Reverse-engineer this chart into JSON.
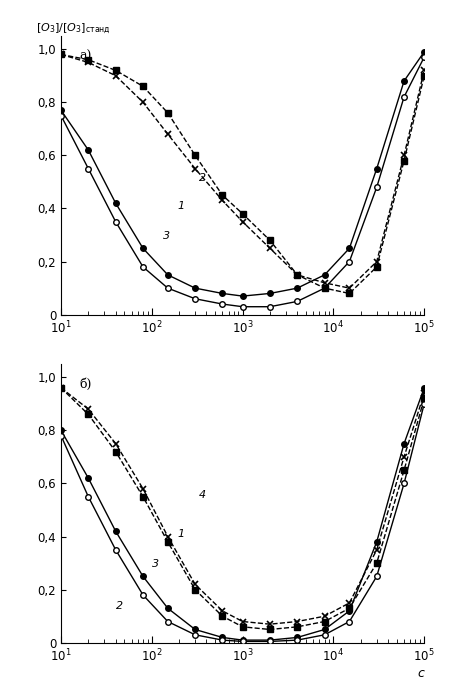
{
  "title_top": "[O₃]/[O₃]станд",
  "label_a": "а)",
  "label_b": "б)",
  "x_label": "c",
  "ylim": [
    0,
    1.05
  ],
  "xlim_log": [
    10.0,
    100000.0
  ],
  "yticks": [
    0,
    0.2,
    0.4,
    0.6,
    0.8,
    1.0
  ],
  "ytick_labels_a": [
    "0",
    "0,2",
    "0,4",
    "0,6",
    "0,8",
    "1,0"
  ],
  "ytick_labels_b": [
    "0",
    "0,2",
    "0,4",
    "0,6",
    "0,8",
    "1,0"
  ],
  "curve_a": {
    "c1_x": [
      10,
      20,
      40,
      80,
      150,
      300,
      600,
      1000,
      2000,
      4000,
      8000,
      15000,
      30000,
      60000,
      100000
    ],
    "c1_y": [
      0.77,
      0.62,
      0.42,
      0.25,
      0.15,
      0.1,
      0.08,
      0.07,
      0.08,
      0.1,
      0.15,
      0.25,
      0.55,
      0.88,
      0.99
    ],
    "c2_x": [
      10,
      20,
      40,
      80,
      150,
      300,
      600,
      1000,
      2000,
      4000,
      8000,
      15000,
      30000,
      60000,
      100000
    ],
    "c2_y": [
      0.98,
      0.95,
      0.9,
      0.8,
      0.68,
      0.55,
      0.43,
      0.35,
      0.25,
      0.15,
      0.12,
      0.1,
      0.2,
      0.6,
      0.92
    ],
    "c3_x": [
      10,
      20,
      40,
      80,
      150,
      300,
      600,
      1000,
      2000,
      4000,
      8000,
      15000,
      30000,
      60000,
      100000
    ],
    "c3_y": [
      0.75,
      0.55,
      0.35,
      0.18,
      0.1,
      0.06,
      0.04,
      0.03,
      0.03,
      0.05,
      0.1,
      0.2,
      0.48,
      0.82,
      0.97
    ],
    "c4_x": [
      10,
      20,
      40,
      80,
      150,
      300,
      600,
      1000,
      2000,
      4000,
      8000,
      15000,
      30000,
      60000,
      100000
    ],
    "c4_y": [
      0.98,
      0.96,
      0.92,
      0.86,
      0.76,
      0.6,
      0.45,
      0.38,
      0.28,
      0.15,
      0.1,
      0.08,
      0.18,
      0.58,
      0.9
    ]
  },
  "curve_b": {
    "c1_x": [
      10,
      20,
      40,
      80,
      150,
      300,
      600,
      1000,
      2000,
      4000,
      8000,
      15000,
      30000,
      60000,
      100000
    ],
    "c1_y": [
      0.8,
      0.62,
      0.42,
      0.25,
      0.13,
      0.05,
      0.02,
      0.01,
      0.01,
      0.02,
      0.05,
      0.12,
      0.38,
      0.75,
      0.96
    ],
    "c2_x": [
      10,
      20,
      40,
      80,
      150,
      300,
      600,
      1000,
      2000,
      4000,
      8000,
      15000,
      30000,
      60000,
      100000
    ],
    "c2_y": [
      0.96,
      0.88,
      0.75,
      0.58,
      0.4,
      0.22,
      0.12,
      0.08,
      0.07,
      0.08,
      0.1,
      0.15,
      0.35,
      0.7,
      0.94
    ],
    "c3_x": [
      10,
      20,
      40,
      80,
      150,
      300,
      600,
      1000,
      2000,
      4000,
      8000,
      15000,
      30000,
      60000,
      100000
    ],
    "c3_y": [
      0.78,
      0.55,
      0.35,
      0.18,
      0.08,
      0.03,
      0.01,
      0.005,
      0.005,
      0.01,
      0.03,
      0.08,
      0.25,
      0.6,
      0.9
    ],
    "c4_x": [
      10,
      20,
      40,
      80,
      150,
      300,
      600,
      1000,
      2000,
      4000,
      8000,
      15000,
      30000,
      60000,
      100000
    ],
    "c4_y": [
      0.96,
      0.86,
      0.72,
      0.55,
      0.38,
      0.2,
      0.1,
      0.06,
      0.05,
      0.06,
      0.08,
      0.13,
      0.3,
      0.65,
      0.92
    ]
  },
  "bg_color": "#ffffff",
  "line_color": "#000000"
}
